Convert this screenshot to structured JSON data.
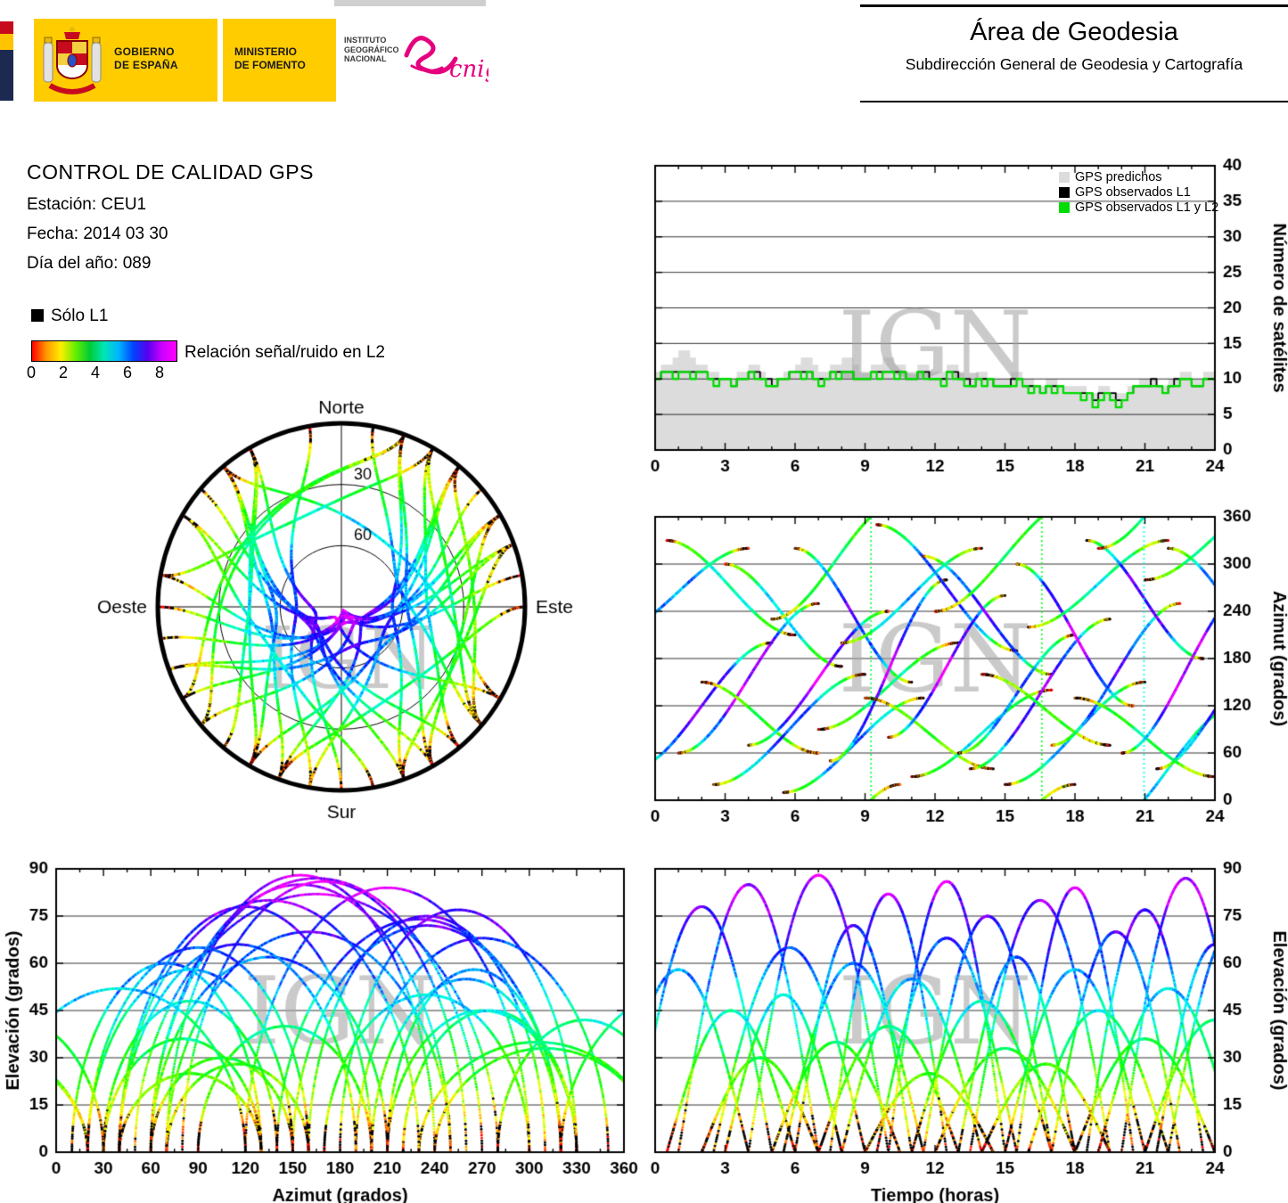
{
  "page": {
    "watermark": "IGN"
  },
  "header": {
    "top_title": "Área de Geodesia",
    "top_subtitle": "Subdirección General de Geodesia y Cartografía",
    "gobierno_line1": "GOBIERNO",
    "gobierno_line2": "DE ESPAÑA",
    "ministerio_line1": "MINISTERIO",
    "ministerio_line2": "DE FOMENTO",
    "ign_line1": "INSTITUTO",
    "ign_line2": "GEOGRÁFICO",
    "ign_line3": "NACIONAL",
    "cnig": "cnig",
    "cnig_color": "#e5007d"
  },
  "info": {
    "title": "CONTROL DE CALIDAD GPS",
    "station": "Estación: CEU1",
    "date": "Fecha: 2014 03 30",
    "day_of_year": "Día del año: 089"
  },
  "legend": {
    "solo_l1": "Sólo L1",
    "solo_l1_color": "#000000",
    "snr_label": "Relación señal/ruido en L2",
    "snr_ticks": [
      "0",
      "2",
      "4",
      "6",
      "8"
    ],
    "snr_range": [
      0,
      9
    ],
    "gradient_stops": [
      "#ff0000",
      "#ff9900",
      "#ffee00",
      "#66ee00",
      "#00cc33",
      "#00e6b8",
      "#00b4ff",
      "#0044ff",
      "#5500ee",
      "#cc00ff",
      "#ff00ff"
    ]
  },
  "skyplot": {
    "north": "Norte",
    "south": "Sur",
    "east": "Este",
    "west": "Oeste",
    "elevation_rings": [
      30,
      60
    ],
    "ring_labels": [
      "30",
      "60"
    ],
    "color_encoding": "SNR L2 0-9 rainbow (rojo→magenta), negro = sólo L1"
  },
  "chart_data": [
    {
      "id": "sat-count",
      "type": "area",
      "title": "",
      "xlabel": "",
      "ylabel": "Número de satélites",
      "xlim": [
        0,
        24
      ],
      "ylim": [
        0,
        40
      ],
      "xticks": [
        0,
        3,
        6,
        9,
        12,
        15,
        18,
        21,
        24
      ],
      "yticks": [
        0,
        5,
        10,
        15,
        20,
        25,
        30,
        35,
        40
      ],
      "x_minor": 1,
      "y_side": "right",
      "grid": "horizontal",
      "legend": [
        {
          "label": "GPS predichos",
          "color": "#dcdcdc"
        },
        {
          "label": "GPS observados L1",
          "color": "#000000"
        },
        {
          "label": "GPS observados L1 y L2",
          "color": "#00dd00"
        }
      ],
      "step_hours": 0.25,
      "predicted": [
        11,
        12,
        12,
        13,
        14,
        14,
        13,
        12,
        12,
        11,
        11,
        10,
        10,
        10,
        11,
        11,
        12,
        12,
        11,
        10,
        10,
        10,
        11,
        11,
        12,
        13,
        13,
        12,
        11,
        11,
        12,
        12,
        13,
        13,
        12,
        11,
        11,
        12,
        12,
        13,
        13,
        12,
        12,
        11,
        11,
        12,
        12,
        11,
        11,
        11,
        12,
        12,
        11,
        10,
        10,
        11,
        11,
        10,
        10,
        10,
        10,
        11,
        11,
        10,
        10,
        9,
        9,
        10,
        10,
        9,
        9,
        9,
        9,
        9,
        8,
        8,
        9,
        9,
        8,
        8,
        8,
        9,
        9,
        10,
        10,
        10,
        9,
        9,
        10,
        10,
        11,
        11,
        10,
        10,
        11,
        11
      ],
      "observed_l1": [
        10,
        11,
        11,
        11,
        11,
        11,
        11,
        11,
        11,
        10,
        10,
        10,
        10,
        9,
        10,
        10,
        11,
        11,
        10,
        10,
        9,
        10,
        10,
        11,
        11,
        11,
        11,
        10,
        10,
        10,
        11,
        11,
        11,
        11,
        10,
        10,
        10,
        11,
        11,
        11,
        11,
        11,
        11,
        10,
        10,
        11,
        11,
        10,
        10,
        10,
        11,
        11,
        10,
        10,
        9,
        10,
        10,
        10,
        9,
        9,
        9,
        10,
        10,
        9,
        9,
        9,
        8,
        9,
        9,
        9,
        8,
        8,
        8,
        8,
        8,
        7,
        8,
        8,
        8,
        7,
        7,
        8,
        9,
        9,
        9,
        10,
        9,
        8,
        9,
        10,
        10,
        10,
        9,
        9,
        10,
        10
      ],
      "observed_l1_l2": [
        10,
        11,
        11,
        10,
        11,
        11,
        10,
        11,
        11,
        10,
        9,
        10,
        10,
        9,
        10,
        10,
        11,
        10,
        10,
        9,
        9,
        10,
        10,
        11,
        11,
        10,
        11,
        10,
        9,
        10,
        11,
        10,
        11,
        11,
        10,
        10,
        10,
        11,
        10,
        11,
        11,
        10,
        11,
        10,
        10,
        11,
        10,
        10,
        10,
        9,
        11,
        10,
        10,
        9,
        9,
        10,
        9,
        10,
        9,
        9,
        9,
        9,
        10,
        9,
        8,
        9,
        8,
        9,
        8,
        9,
        8,
        8,
        8,
        7,
        8,
        6,
        7,
        8,
        7,
        6,
        7,
        8,
        9,
        9,
        9,
        9,
        9,
        8,
        9,
        9,
        10,
        10,
        9,
        9,
        10,
        10
      ]
    },
    {
      "id": "az-time",
      "type": "scatter",
      "x_var": "time",
      "y_var": "azimuth",
      "xlabel": "",
      "ylabel": "Azimut (grados)",
      "xlim": [
        0,
        24
      ],
      "ylim": [
        0,
        360
      ],
      "xticks": [
        0,
        3,
        6,
        9,
        12,
        15,
        18,
        21,
        24
      ],
      "yticks": [
        0,
        60,
        120,
        180,
        240,
        300,
        360
      ],
      "x_minor": 1,
      "y_side": "right",
      "grid": "horizontal",
      "tracks_from": "satellite_passes"
    },
    {
      "id": "elev-az",
      "type": "scatter",
      "x_var": "azimuth",
      "y_var": "elevation",
      "xlabel": "Azimut (grados)",
      "ylabel": "Elevación (grados)",
      "xlim": [
        0,
        360
      ],
      "ylim": [
        0,
        90
      ],
      "xticks": [
        0,
        30,
        60,
        90,
        120,
        150,
        180,
        210,
        240,
        270,
        300,
        330,
        360
      ],
      "yticks": [
        0,
        15,
        30,
        45,
        60,
        75,
        90
      ],
      "x_minor": 15,
      "y_side": "left",
      "grid": "horizontal",
      "tracks_from": "satellite_passes"
    },
    {
      "id": "elev-time",
      "type": "scatter",
      "x_var": "time",
      "y_var": "elevation",
      "xlabel": "Tiempo (horas)",
      "ylabel": "Elevación (grados)",
      "xlim": [
        0,
        24
      ],
      "ylim": [
        0,
        90
      ],
      "xticks": [
        0,
        3,
        6,
        9,
        12,
        15,
        18,
        21,
        24
      ],
      "yticks": [
        0,
        15,
        30,
        45,
        60,
        75,
        90
      ],
      "x_minor": 1,
      "y_side": "right",
      "grid": "horizontal",
      "tracks_from": "satellite_passes"
    }
  ],
  "satellite_passes": {
    "format": [
      "t0_hours",
      "duration_hours",
      "max_elevation_deg",
      "azimuth_start_deg",
      "azimuth_end_deg"
    ],
    "list": [
      [
        -1,
        6,
        78,
        40,
        200
      ],
      [
        0.5,
        5.5,
        45,
        330,
        210
      ],
      [
        1,
        6,
        85,
        60,
        250
      ],
      [
        2,
        5,
        30,
        150,
        60
      ],
      [
        2.5,
        6.5,
        65,
        20,
        160
      ],
      [
        3,
        5,
        50,
        300,
        170
      ],
      [
        4,
        6,
        88,
        70,
        240
      ],
      [
        5,
        5.5,
        35,
        230,
        380
      ],
      [
        5.5,
        6,
        60,
        10,
        130
      ],
      [
        6,
        5,
        72,
        320,
        150
      ],
      [
        7,
        6,
        40,
        90,
        200
      ],
      [
        7.5,
        5,
        82,
        50,
        280
      ],
      [
        8,
        6,
        55,
        200,
        320
      ],
      [
        9,
        5.5,
        25,
        130,
        40
      ],
      [
        9.5,
        6,
        68,
        350,
        190
      ],
      [
        10,
        5,
        86,
        80,
        260
      ],
      [
        11,
        6,
        48,
        30,
        140
      ],
      [
        11.5,
        5.5,
        75,
        310,
        160
      ],
      [
        12,
        6,
        33,
        240,
        380
      ],
      [
        13,
        5,
        62,
        60,
        210
      ],
      [
        13.5,
        6,
        80,
        40,
        230
      ],
      [
        14,
        5.5,
        28,
        160,
        70
      ],
      [
        15,
        6,
        58,
        20,
        150
      ],
      [
        15.5,
        5,
        84,
        300,
        120
      ],
      [
        16,
        6,
        45,
        220,
        330
      ],
      [
        17,
        5.5,
        70,
        70,
        250
      ],
      [
        18,
        6,
        36,
        130,
        30
      ],
      [
        18.5,
        5,
        77,
        330,
        180
      ],
      [
        19,
        6,
        52,
        -40,
        120
      ],
      [
        20,
        5.5,
        87,
        60,
        270
      ],
      [
        21,
        6,
        42,
        280,
        390
      ],
      [
        21.5,
        5,
        66,
        40,
        190
      ],
      [
        22,
        6,
        74,
        320,
        140
      ],
      [
        -2,
        6,
        58,
        210,
        320
      ]
    ]
  }
}
